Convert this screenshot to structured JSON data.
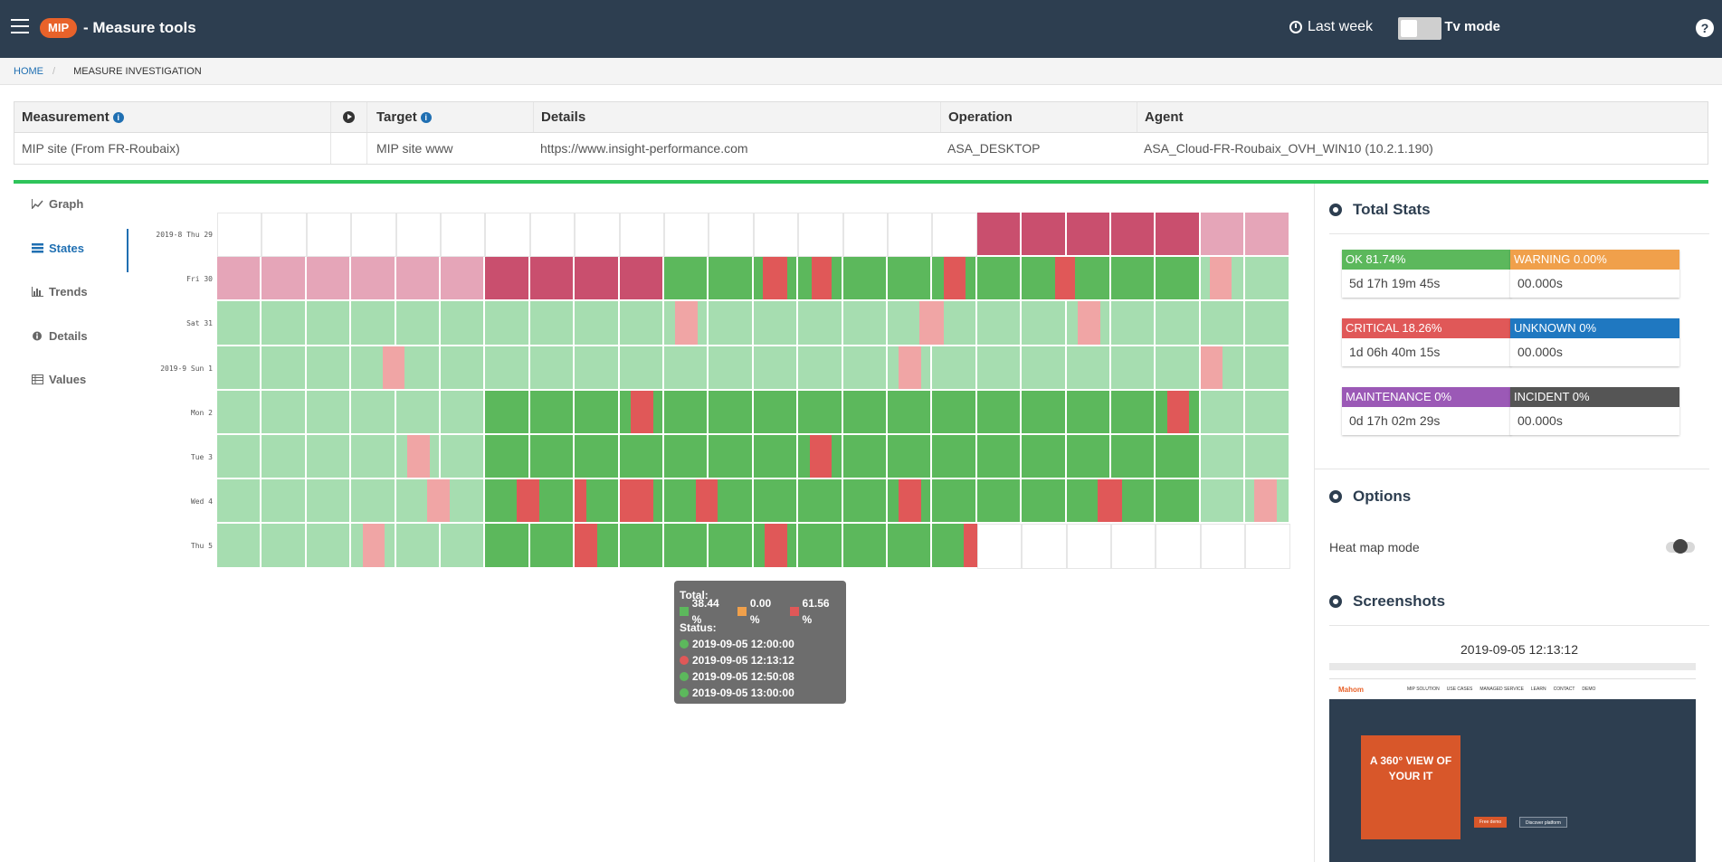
{
  "app": {
    "logo": "MIP",
    "title": "-  Measure tools",
    "period": "Last week",
    "tv_mode": "Tv mode",
    "help": "?"
  },
  "breadcrumb": {
    "home": "HOME",
    "sep": "/",
    "current": "MEASURE INVESTIGATION"
  },
  "table": {
    "headers": {
      "measurement": "Measurement",
      "target": "Target",
      "details": "Details",
      "operation": "Operation",
      "agent": "Agent"
    },
    "row": {
      "measurement": "MIP site (From FR-Roubaix)",
      "target": "MIP site www",
      "details": "https://www.insight-performance.com",
      "operation": "ASA_DESKTOP",
      "agent": "ASA_Cloud-FR-Roubaix_OVH_WIN10 (10.2.1.190)"
    }
  },
  "nav": {
    "graph": "Graph",
    "states": "States",
    "trends": "Trends",
    "details": "Details",
    "values": "Values"
  },
  "heatmap": {
    "days": [
      "2019-8 Thu 29",
      "Fri 30",
      "Sat 31",
      "2019-9 Sun 1",
      "Mon 2",
      "Tue 3",
      "Wed 4",
      "Thu 5"
    ],
    "colors": {
      "ok": "#5cb85c",
      "ok_light": "#a6ddb0",
      "critical": "#e05858",
      "critical_light": "#f0a5a5",
      "critical_dark": "#c94f6e",
      "critical_hatch": "#e5a5b8"
    }
  },
  "tooltip": {
    "total_label": "Total:",
    "ok_pct": "38.44 %",
    "warn_pct": "0.00 %",
    "crit_pct": "61.56 %",
    "status_label": "Status:",
    "events": [
      {
        "time": "2019-09-05 12:00:00",
        "state": "ok"
      },
      {
        "time": "2019-09-05 12:13:12",
        "state": "critical"
      },
      {
        "time": "2019-09-05 12:50:08",
        "state": "ok"
      },
      {
        "time": "2019-09-05 13:00:00",
        "state": "ok"
      }
    ]
  },
  "stats": {
    "title": "Total Stats",
    "ok": {
      "label": "OK 81.74%",
      "value": "5d 17h 19m 45s",
      "color": "#5cb85c"
    },
    "warning": {
      "label": "WARNING 0.00%",
      "value": "00.000s",
      "color": "#f0a04b"
    },
    "critical": {
      "label": "CRITICAL 18.26%",
      "value": "1d 06h 40m 15s",
      "color": "#e05858"
    },
    "unknown": {
      "label": "UNKNOWN 0%",
      "value": "00.000s",
      "color": "#1f78c1"
    },
    "maintenance": {
      "label": "MAINTENANCE 0%",
      "value": "0d 17h 02m 29s",
      "color": "#9b59b6"
    },
    "incident": {
      "label": "INCIDENT 0%",
      "value": "00.000s",
      "color": "#555555"
    }
  },
  "options": {
    "title": "Options",
    "heatmap_mode": "Heat map mode"
  },
  "screenshots": {
    "title": "Screenshots",
    "timestamp": "2019-09-05 12:13:12",
    "preview": {
      "logo": "Mahom",
      "nav": [
        "MIP SOLUTION",
        "USE CASES",
        "MANAGED SERVICE",
        "LEARN",
        "CONTACT",
        "DEMO"
      ],
      "headline": "A 360° VIEW OF YOUR IT",
      "cta1": "Free demo",
      "cta2": "Discover platform"
    }
  }
}
